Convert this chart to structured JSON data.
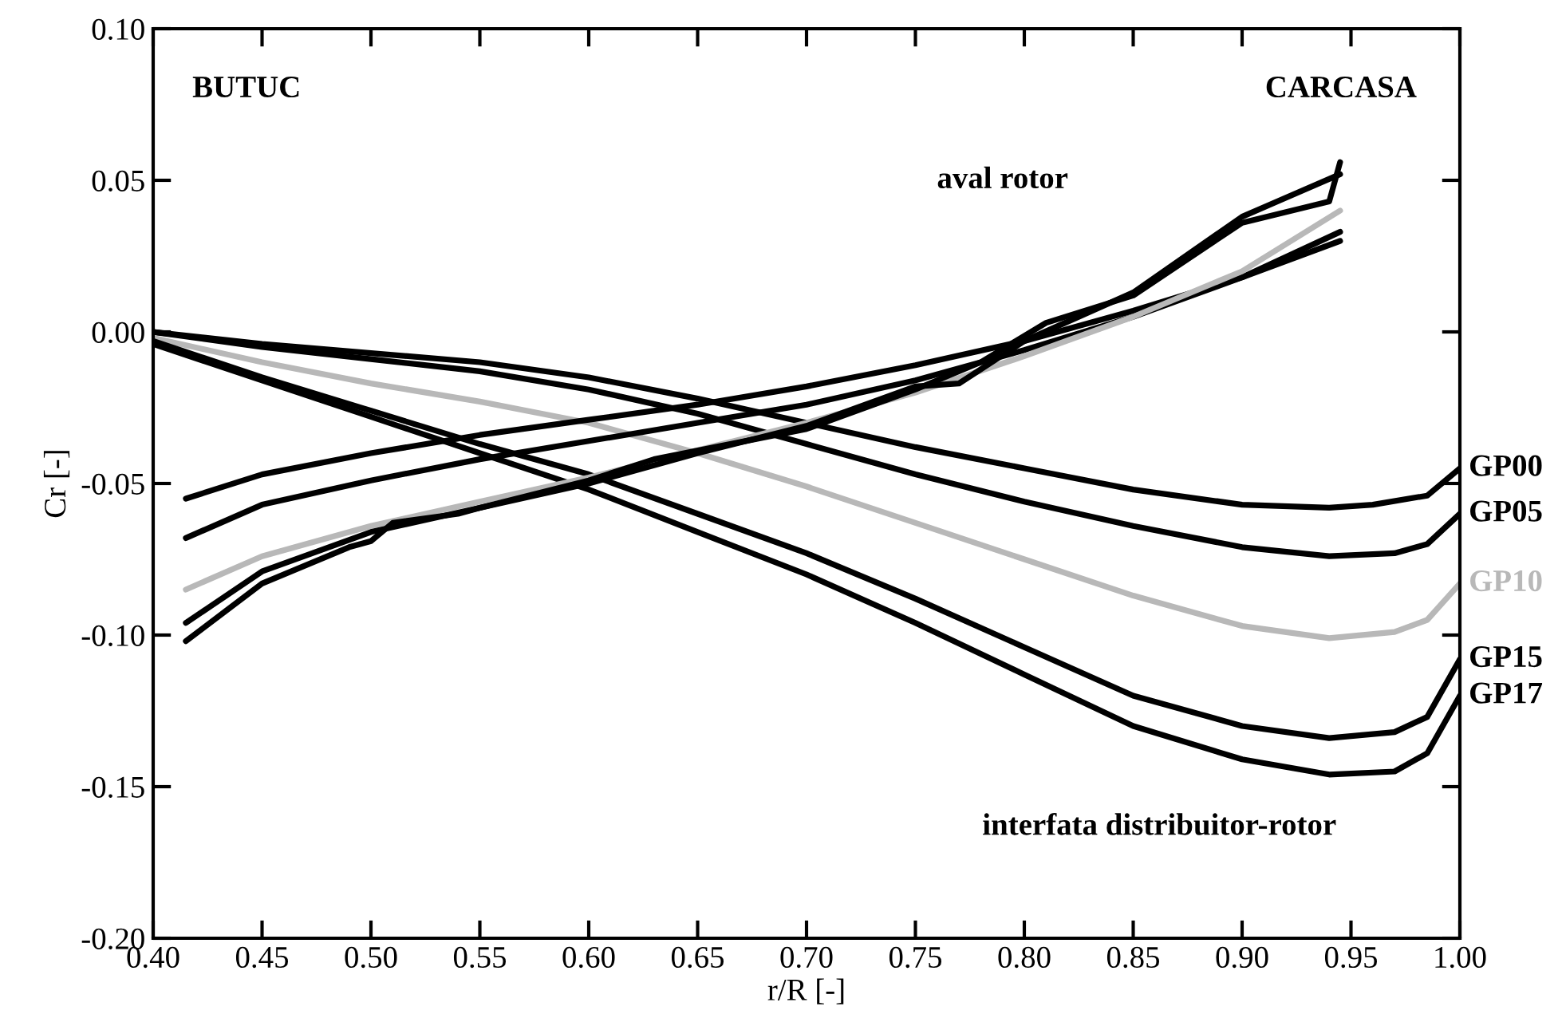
{
  "chart_data": {
    "type": "line",
    "xlabel": "r/R [-]",
    "ylabel": "Cr [-]",
    "xlim": [
      0.4,
      1.0
    ],
    "ylim": [
      -0.2,
      0.1
    ],
    "xticks": [
      {
        "value": 0.4,
        "label": "0.40"
      },
      {
        "value": 0.45,
        "label": "0.45"
      },
      {
        "value": 0.5,
        "label": "0.50"
      },
      {
        "value": 0.55,
        "label": "0.55"
      },
      {
        "value": 0.6,
        "label": "0.60"
      },
      {
        "value": 0.65,
        "label": "0.65"
      },
      {
        "value": 0.7,
        "label": "0.70"
      },
      {
        "value": 0.75,
        "label": "0.75"
      },
      {
        "value": 0.8,
        "label": "0.80"
      },
      {
        "value": 0.85,
        "label": "0.85"
      },
      {
        "value": 0.9,
        "label": "0.90"
      },
      {
        "value": 0.95,
        "label": "0.95"
      },
      {
        "value": 1.0,
        "label": "1.00"
      }
    ],
    "yticks": [
      {
        "value": -0.2,
        "label": "-0.20"
      },
      {
        "value": -0.15,
        "label": "-0.15"
      },
      {
        "value": -0.1,
        "label": "-0.10"
      },
      {
        "value": -0.05,
        "label": "-0.05"
      },
      {
        "value": 0.0,
        "label": "0.00"
      },
      {
        "value": 0.05,
        "label": "0.05"
      },
      {
        "value": 0.1,
        "label": "0.10"
      }
    ],
    "grid": false,
    "legend": "right",
    "marker": "none",
    "line_style": "solid",
    "annotations": [
      "BUTUC",
      "CARCASA",
      "aval rotor",
      "interfata distribuitor-rotor"
    ],
    "series": [
      {
        "name": "GP00",
        "color": "#000000",
        "x": [
          0.4,
          0.45,
          0.5,
          0.55,
          0.6,
          0.65,
          0.7,
          0.75,
          0.8,
          0.85,
          0.9,
          0.94,
          0.96,
          0.985,
          1.0
        ],
        "values": [
          0.0,
          -0.004,
          -0.007,
          -0.01,
          -0.015,
          -0.022,
          -0.03,
          -0.038,
          -0.045,
          -0.052,
          -0.057,
          -0.058,
          -0.057,
          -0.054,
          -0.045
        ]
      },
      {
        "name": "GP05",
        "color": "#000000",
        "x": [
          0.4,
          0.45,
          0.5,
          0.55,
          0.6,
          0.65,
          0.7,
          0.75,
          0.8,
          0.85,
          0.9,
          0.94,
          0.97,
          0.985,
          1.0
        ],
        "values": [
          0.0,
          -0.005,
          -0.009,
          -0.013,
          -0.019,
          -0.027,
          -0.037,
          -0.047,
          -0.056,
          -0.064,
          -0.071,
          -0.074,
          -0.073,
          -0.07,
          -0.06
        ]
      },
      {
        "name": "GP10",
        "color": "#b8b8b8",
        "x": [
          0.4,
          0.45,
          0.5,
          0.55,
          0.6,
          0.65,
          0.7,
          0.75,
          0.8,
          0.85,
          0.9,
          0.94,
          0.97,
          0.985,
          1.0
        ],
        "values": [
          -0.002,
          -0.01,
          -0.017,
          -0.023,
          -0.03,
          -0.04,
          -0.051,
          -0.063,
          -0.075,
          -0.087,
          -0.097,
          -0.101,
          -0.099,
          -0.095,
          -0.083
        ]
      },
      {
        "name": "GP15",
        "color": "#000000",
        "x": [
          0.4,
          0.45,
          0.5,
          0.55,
          0.6,
          0.65,
          0.7,
          0.75,
          0.8,
          0.85,
          0.9,
          0.94,
          0.97,
          0.985,
          1.0
        ],
        "values": [
          -0.003,
          -0.015,
          -0.026,
          -0.037,
          -0.047,
          -0.06,
          -0.073,
          -0.088,
          -0.104,
          -0.12,
          -0.13,
          -0.134,
          -0.132,
          -0.127,
          -0.108
        ]
      },
      {
        "name": "GP17",
        "color": "#000000",
        "x": [
          0.4,
          0.45,
          0.5,
          0.55,
          0.6,
          0.65,
          0.7,
          0.75,
          0.8,
          0.85,
          0.9,
          0.94,
          0.97,
          0.985,
          1.0
        ],
        "values": [
          -0.004,
          -0.016,
          -0.028,
          -0.04,
          -0.052,
          -0.066,
          -0.08,
          -0.096,
          -0.113,
          -0.13,
          -0.141,
          -0.146,
          -0.145,
          -0.139,
          -0.12
        ]
      },
      {
        "color": "#000000",
        "x": [
          0.415,
          0.45,
          0.5,
          0.55,
          0.6,
          0.65,
          0.7,
          0.75,
          0.8,
          0.85,
          0.9,
          0.945
        ],
        "values": [
          -0.055,
          -0.047,
          -0.04,
          -0.034,
          -0.029,
          -0.024,
          -0.018,
          -0.011,
          -0.003,
          0.007,
          0.018,
          0.03
        ]
      },
      {
        "color": "#000000",
        "x": [
          0.415,
          0.45,
          0.5,
          0.55,
          0.6,
          0.65,
          0.7,
          0.75,
          0.8,
          0.85,
          0.9,
          0.945
        ],
        "values": [
          -0.068,
          -0.057,
          -0.049,
          -0.042,
          -0.036,
          -0.03,
          -0.024,
          -0.016,
          -0.006,
          0.005,
          0.018,
          0.033
        ]
      },
      {
        "color": "#b8b8b8",
        "x": [
          0.415,
          0.45,
          0.5,
          0.55,
          0.6,
          0.65,
          0.7,
          0.75,
          0.8,
          0.85,
          0.9,
          0.945
        ],
        "values": [
          -0.085,
          -0.074,
          -0.064,
          -0.056,
          -0.048,
          -0.039,
          -0.03,
          -0.02,
          -0.008,
          0.005,
          0.02,
          0.04
        ]
      },
      {
        "color": "#000000",
        "x": [
          0.415,
          0.45,
          0.5,
          0.55,
          0.6,
          0.63,
          0.7,
          0.75,
          0.78,
          0.81,
          0.85,
          0.9,
          0.94,
          0.945
        ],
        "values": [
          -0.096,
          -0.079,
          -0.066,
          -0.058,
          -0.049,
          -0.042,
          -0.032,
          -0.019,
          -0.01,
          0.003,
          0.012,
          0.036,
          0.043,
          0.056
        ]
      },
      {
        "color": "#000000",
        "x": [
          0.415,
          0.45,
          0.49,
          0.5,
          0.51,
          0.54,
          0.55,
          0.6,
          0.65,
          0.7,
          0.75,
          0.77,
          0.8,
          0.85,
          0.9,
          0.945
        ],
        "values": [
          -0.102,
          -0.083,
          -0.071,
          -0.069,
          -0.063,
          -0.06,
          -0.058,
          -0.05,
          -0.04,
          -0.031,
          -0.018,
          -0.017,
          -0.003,
          0.013,
          0.038,
          0.052
        ]
      }
    ]
  }
}
